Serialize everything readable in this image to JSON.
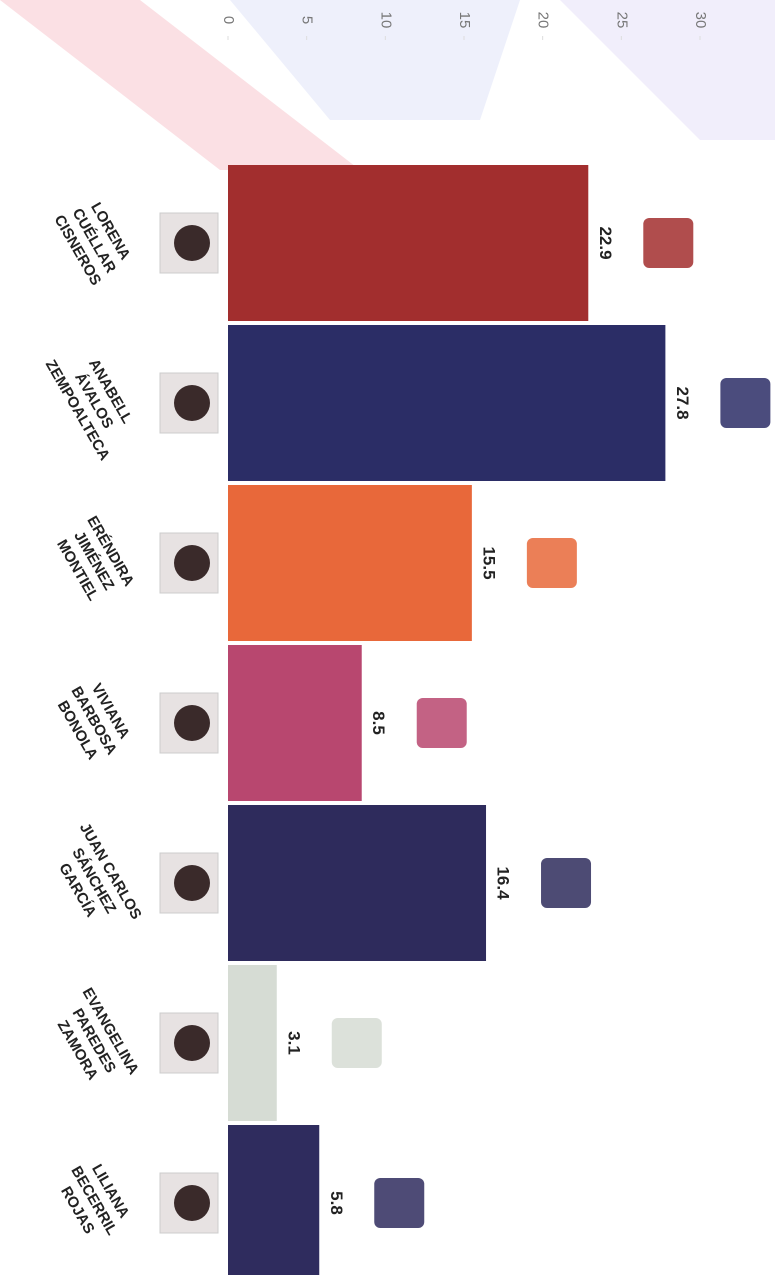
{
  "chart_data": {
    "type": "bar",
    "categories": [
      [
        "LORENA",
        "CUÉLLAR",
        "CISNEROS"
      ],
      [
        "ANABELL",
        "ÁVALOS",
        "ZEMPOALTECA"
      ],
      [
        "ERÉNDIRA",
        "JIMÉNEZ",
        "MONTIEL"
      ],
      [
        "VIVIANA",
        "BARBOSA",
        "BONOLA"
      ],
      [
        "JUAN CARLOS",
        "SÁNCHEZ",
        "GARCÍA"
      ],
      [
        "EVANGELINA",
        "PAREDES",
        "ZAMORA"
      ],
      [
        "LILIANA",
        "BECERRIL",
        "ROJAS"
      ]
    ],
    "values": [
      22.9,
      27.8,
      15.5,
      8.5,
      16.4,
      3.1,
      5.8
    ],
    "colors": [
      "#a22e2e",
      "#2b2d66",
      "#e8683a",
      "#b8476f",
      "#2e2b5c",
      "#d6dcd4",
      "#2f2c5e"
    ],
    "xlim": [
      0,
      30
    ],
    "xticks": [
      0,
      5,
      10,
      15,
      20,
      25,
      30
    ]
  }
}
